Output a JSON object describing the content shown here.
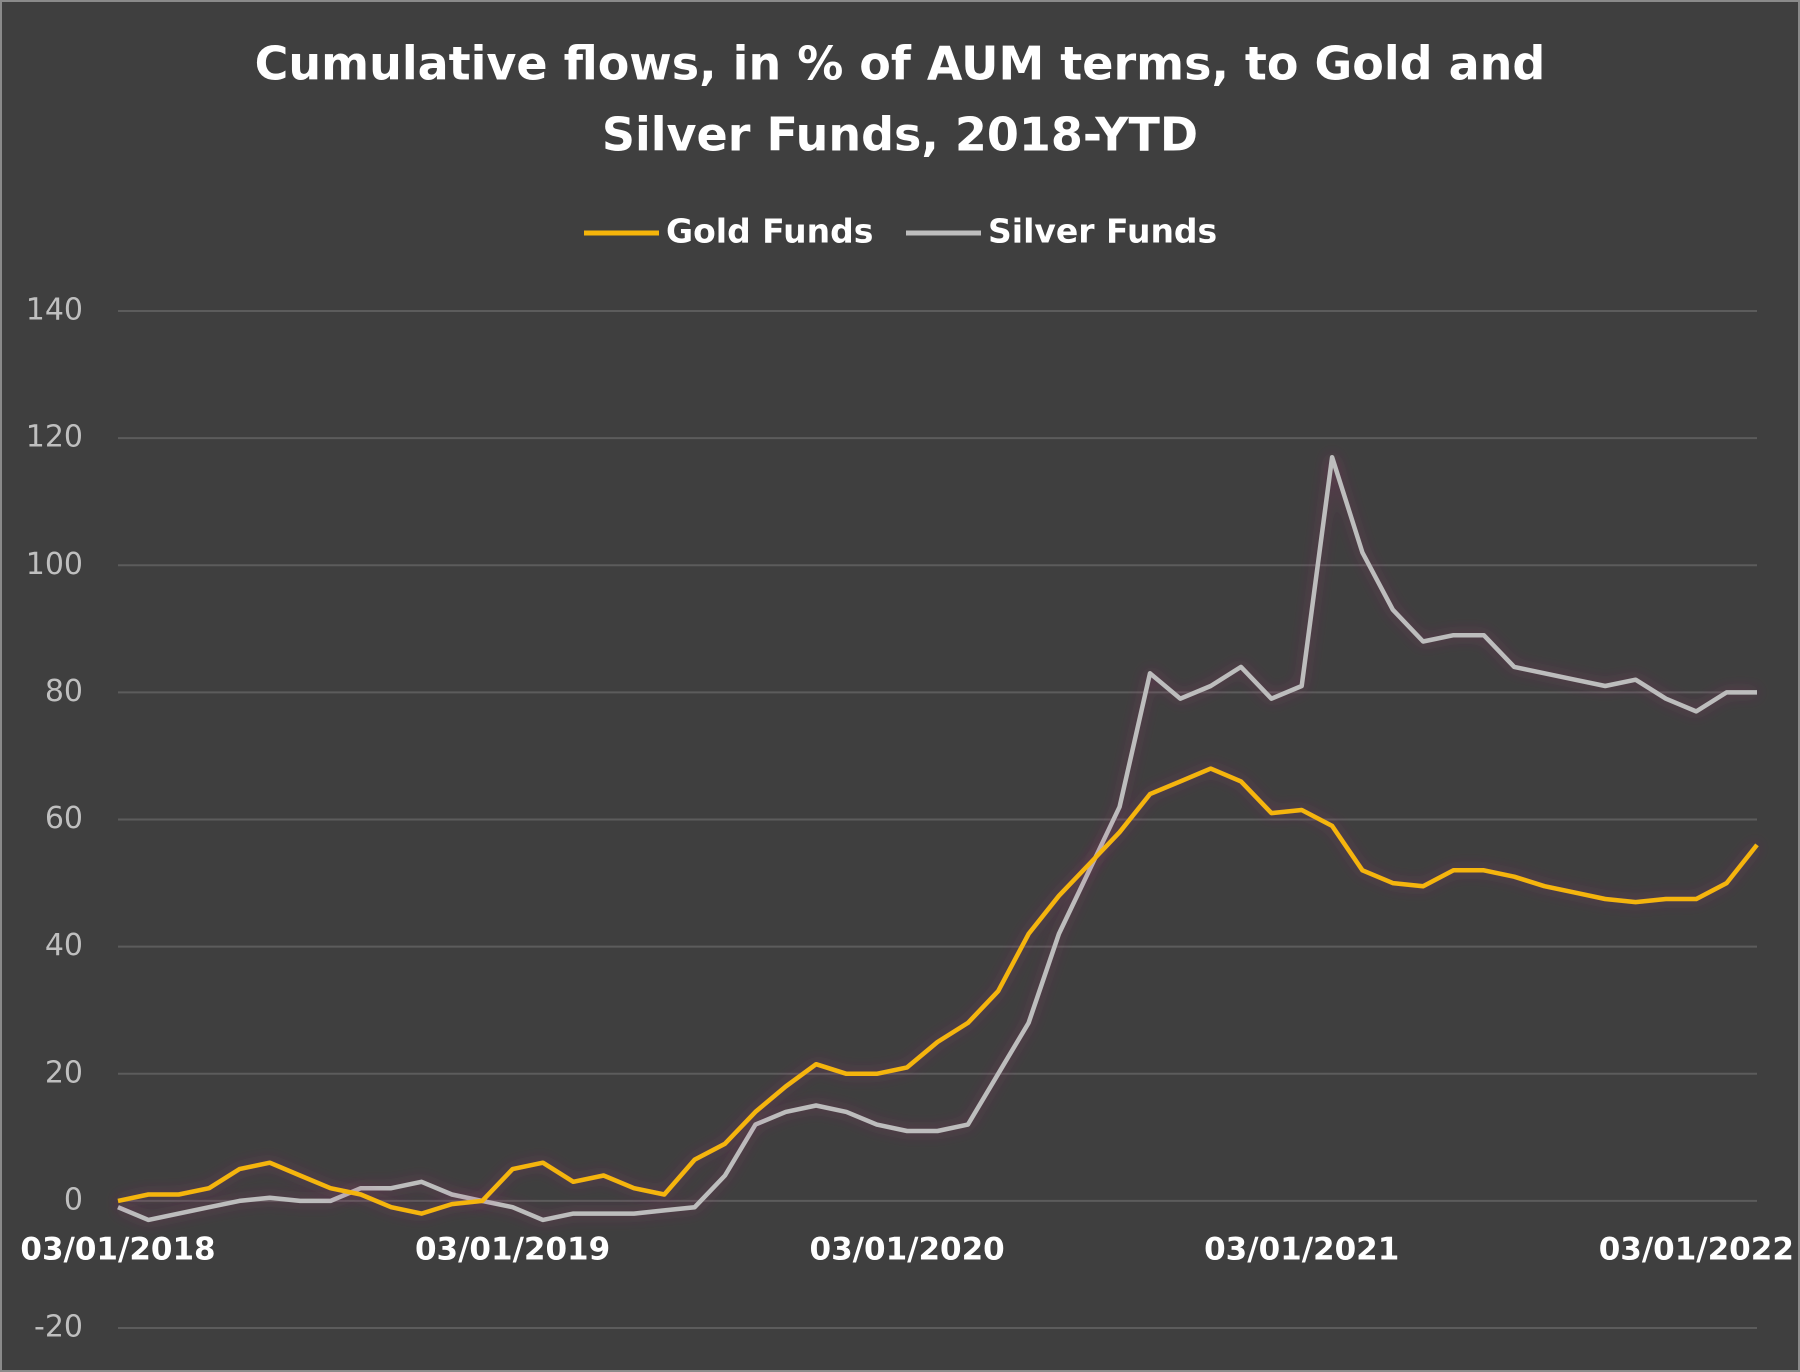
{
  "chart_data": {
    "type": "line",
    "title": [
      "Cumulative flows, in % of AUM terms, to Gold and",
      "Silver Funds, 2018-YTD"
    ],
    "categories": [
      "03/01/2018",
      null,
      null,
      null,
      null,
      null,
      null,
      null,
      null,
      null,
      null,
      null,
      null,
      "03/01/2019",
      null,
      null,
      null,
      null,
      null,
      null,
      null,
      null,
      null,
      null,
      null,
      null,
      "03/01/2020",
      null,
      null,
      null,
      null,
      null,
      null,
      null,
      null,
      null,
      null,
      null,
      null,
      "03/01/2021",
      null,
      null,
      null,
      null,
      null,
      null,
      null,
      null,
      null,
      null,
      null,
      null,
      "03/01/2022",
      null,
      null
    ],
    "series": [
      {
        "name": "Gold Funds",
        "color": "#f5b50a",
        "values": [
          0,
          1,
          1,
          2,
          5,
          6,
          4,
          2,
          1,
          -1,
          -2,
          -0.5,
          0,
          5,
          6,
          3,
          4,
          2,
          1,
          6.5,
          9,
          14,
          18,
          21.5,
          20,
          20,
          21,
          25,
          28,
          33,
          42,
          48,
          53,
          58,
          64,
          66,
          68,
          66,
          61,
          61.5,
          59,
          52,
          50,
          49.5,
          52,
          52,
          51,
          49.5,
          48.5,
          47.5,
          47,
          47.5,
          47.5,
          50,
          56
        ]
      },
      {
        "name": "Silver Funds",
        "color": "#bdbdbd",
        "values": [
          -1,
          -3,
          -2,
          -1,
          0,
          0.5,
          0,
          0,
          2,
          2,
          3,
          1,
          0,
          -1,
          -3,
          -2,
          -2,
          -2,
          -1.5,
          -1,
          4,
          12,
          14,
          15,
          14,
          12,
          11,
          11,
          12,
          20,
          28,
          42,
          52,
          62,
          83,
          79,
          81,
          84,
          79,
          81,
          117,
          102,
          93,
          88,
          89,
          89,
          84,
          83,
          82,
          81,
          82,
          79,
          77,
          80,
          80
        ]
      }
    ],
    "ylim": [
      -20,
      140
    ],
    "yticks": [
      -20,
      0,
      20,
      40,
      60,
      80,
      100,
      120,
      140
    ],
    "grid": true,
    "legend": "top"
  }
}
